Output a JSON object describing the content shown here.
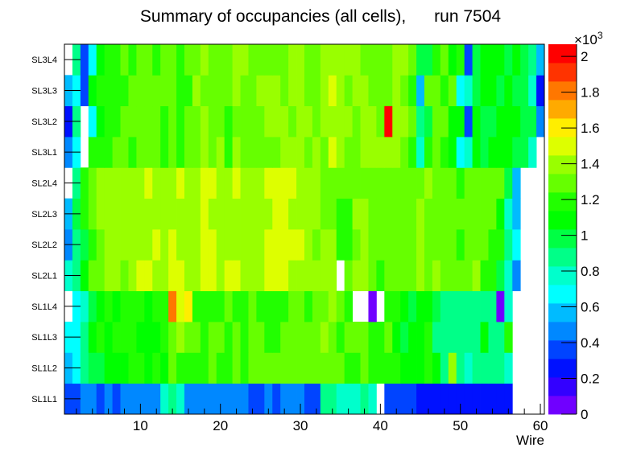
{
  "chart_data": {
    "type": "heatmap",
    "title": "Summary of occupancies (all cells),      run 7504",
    "xlabel": "Wire",
    "ylabel": "",
    "xlim": [
      0.5,
      60.5
    ],
    "x_ticks": [
      10,
      20,
      30,
      40,
      50,
      60
    ],
    "y_categories": [
      "SL1L1",
      "SL1L2",
      "SL1L3",
      "SL1L4",
      "SL2L1",
      "SL2L2",
      "SL2L3",
      "SL2L4",
      "SL3L1",
      "SL3L2",
      "SL3L3",
      "SL3L4"
    ],
    "zlim": [
      0,
      2068
    ],
    "z_multiplier_label": "×10",
    "z_multiplier_exponent": "3",
    "z_ticks": [
      "0",
      "0.2",
      "0.4",
      "0.6",
      "0.8",
      "1",
      "1.2",
      "1.4",
      "1.6",
      "1.8",
      "2"
    ],
    "palette": [
      "#7000ff",
      "#3300ff",
      "#0011ff",
      "#0044ff",
      "#0088ff",
      "#00bbff",
      "#00ffff",
      "#00ffcc",
      "#00ff88",
      "#00ff44",
      "#00ff00",
      "#22ff00",
      "#66ff00",
      "#99ff00",
      "#ddff00",
      "#ffee00",
      "#ffaa00",
      "#ff7700",
      "#ff3300",
      "#ff0000"
    ],
    "z": [
      [
        360,
        360,
        470,
        470,
        360,
        470,
        360,
        470,
        470,
        470,
        470,
        470,
        780,
        880,
        780,
        470,
        470,
        470,
        470,
        470,
        470,
        470,
        470,
        360,
        360,
        470,
        360,
        470,
        470,
        470,
        360,
        360,
        880,
        880,
        780,
        780,
        780,
        880,
        780,
        null,
        360,
        360,
        360,
        360,
        260,
        260,
        260,
        260,
        260,
        260,
        260,
        260,
        260,
        260,
        260,
        260,
        null,
        null,
        null,
        null
      ],
      [
        570,
        670,
        880,
        980,
        980,
        1090,
        1090,
        1090,
        1190,
        1190,
        1090,
        1190,
        1090,
        1290,
        1190,
        1190,
        1190,
        1190,
        1290,
        1190,
        1190,
        1290,
        1190,
        1290,
        1290,
        1290,
        1290,
        1290,
        1290,
        1290,
        1290,
        1290,
        1290,
        1290,
        1290,
        1190,
        1190,
        1290,
        1190,
        1190,
        1190,
        1190,
        1090,
        1090,
        1090,
        1190,
        1090,
        880,
        1400,
        880,
        780,
        880,
        880,
        880,
        880,
        780,
        null,
        null,
        null,
        null
      ],
      [
        670,
        670,
        880,
        1090,
        1190,
        1090,
        1190,
        1190,
        1190,
        1090,
        1090,
        1090,
        1190,
        1290,
        1400,
        1290,
        1290,
        1190,
        1290,
        1290,
        1190,
        1290,
        1190,
        1290,
        1290,
        1190,
        1190,
        1290,
        1290,
        1290,
        1290,
        1290,
        1400,
        1290,
        1190,
        1290,
        1290,
        1290,
        1190,
        1190,
        1290,
        1090,
        980,
        1090,
        1090,
        1190,
        880,
        880,
        880,
        880,
        880,
        880,
        1090,
        880,
        880,
        1190,
        null,
        null,
        null,
        null
      ],
      [
        null,
        670,
        780,
        980,
        1090,
        1190,
        1090,
        1190,
        1190,
        1190,
        1090,
        1190,
        1190,
        1810,
        1500,
        1600,
        1190,
        1190,
        1190,
        1190,
        1290,
        1190,
        1190,
        1290,
        1190,
        1190,
        1190,
        1190,
        1290,
        1290,
        1190,
        1290,
        1290,
        1400,
        1290,
        1190,
        null,
        null,
        50,
        null,
        1190,
        1190,
        1090,
        980,
        1090,
        1090,
        980,
        880,
        880,
        880,
        880,
        880,
        880,
        880,
        50,
        780,
        null,
        null,
        null,
        null
      ],
      [
        780,
        880,
        1090,
        1290,
        1290,
        1400,
        1400,
        1290,
        1400,
        1500,
        1500,
        1400,
        1400,
        1500,
        1500,
        1400,
        1400,
        1500,
        1500,
        1400,
        1500,
        1500,
        1400,
        1400,
        1400,
        1500,
        1500,
        1500,
        1400,
        1400,
        1400,
        1400,
        1400,
        1400,
        null,
        1290,
        1400,
        1400,
        1290,
        1190,
        1290,
        1290,
        1290,
        1290,
        1400,
        1290,
        1400,
        1290,
        1290,
        1290,
        1290,
        1400,
        1190,
        1190,
        980,
        780,
        470,
        null,
        null,
        null
      ],
      [
        470,
        880,
        980,
        1190,
        1290,
        1400,
        1400,
        1400,
        1400,
        1400,
        1400,
        1500,
        1400,
        1500,
        1400,
        1400,
        1400,
        1500,
        1500,
        1400,
        1400,
        1400,
        1400,
        1400,
        1400,
        1500,
        1500,
        1500,
        1500,
        1500,
        1400,
        1290,
        1400,
        1400,
        1190,
        1190,
        1290,
        1400,
        1290,
        1290,
        1290,
        1290,
        1290,
        1290,
        1400,
        1290,
        1290,
        1290,
        1290,
        1190,
        1290,
        1290,
        1290,
        1190,
        1190,
        880,
        670,
        null,
        null,
        null
      ],
      [
        570,
        980,
        1190,
        1290,
        1400,
        1400,
        1400,
        1400,
        1400,
        1400,
        1400,
        1400,
        1400,
        1400,
        1400,
        1400,
        1400,
        1500,
        1400,
        1400,
        1400,
        1400,
        1400,
        1400,
        1400,
        1400,
        1500,
        1500,
        1400,
        1400,
        1400,
        1400,
        1290,
        1290,
        1190,
        1190,
        1400,
        1400,
        1290,
        1290,
        1290,
        1290,
        1290,
        1290,
        1400,
        1290,
        1290,
        1290,
        1290,
        1290,
        1290,
        1290,
        1290,
        1290,
        1090,
        780,
        570,
        null,
        null,
        null
      ],
      [
        null,
        880,
        1190,
        1290,
        1400,
        1400,
        1400,
        1400,
        1400,
        1400,
        1500,
        1400,
        1400,
        1400,
        1500,
        1400,
        1400,
        1500,
        1500,
        1400,
        1400,
        1500,
        1400,
        1400,
        1400,
        1500,
        1500,
        1500,
        1500,
        1400,
        1400,
        1400,
        1290,
        1290,
        1290,
        1290,
        1290,
        1290,
        1290,
        1290,
        1290,
        1290,
        1290,
        1290,
        1290,
        1400,
        1290,
        1290,
        1290,
        1190,
        1290,
        1290,
        1290,
        1290,
        1290,
        980,
        570,
        null,
        null,
        null
      ],
      [
        470,
        670,
        null,
        1190,
        1190,
        1190,
        1290,
        1290,
        1190,
        1290,
        1290,
        1290,
        1190,
        1290,
        1190,
        1290,
        1290,
        1400,
        1290,
        1400,
        1190,
        1400,
        1290,
        1290,
        1290,
        1290,
        1290,
        1400,
        1400,
        1400,
        1290,
        1400,
        1290,
        1500,
        1400,
        1290,
        1290,
        1400,
        1400,
        1400,
        1400,
        1400,
        1290,
        1190,
        780,
        1190,
        1290,
        1190,
        1090,
        670,
        780,
        1090,
        980,
        1090,
        1090,
        1090,
        980,
        980,
        780,
        null
      ],
      [
        260,
        880,
        null,
        670,
        1090,
        1190,
        1190,
        1290,
        1290,
        1290,
        1290,
        1290,
        1190,
        1290,
        1190,
        1290,
        1290,
        1400,
        1290,
        1290,
        1190,
        1290,
        1290,
        1290,
        1290,
        1400,
        1400,
        1400,
        1290,
        1400,
        1400,
        1290,
        1400,
        1400,
        1400,
        1400,
        1290,
        1400,
        1400,
        1290,
        2010,
        1400,
        1400,
        1290,
        880,
        980,
        1290,
        1290,
        1090,
        1090,
        360,
        1090,
        980,
        980,
        1090,
        1090,
        1090,
        980,
        980,
        470
      ],
      [
        570,
        670,
        360,
        1090,
        1190,
        1190,
        1190,
        1190,
        1290,
        1290,
        1290,
        1290,
        1290,
        1290,
        1190,
        1190,
        1400,
        1290,
        1290,
        1290,
        1290,
        1400,
        1290,
        1290,
        1400,
        1400,
        1400,
        1290,
        1400,
        1400,
        1290,
        1290,
        1400,
        1500,
        1400,
        1290,
        1400,
        1400,
        1290,
        1290,
        1290,
        1400,
        1290,
        1190,
        570,
        1290,
        1290,
        1190,
        1290,
        670,
        780,
        980,
        1090,
        1090,
        980,
        1090,
        980,
        980,
        780,
        260
      ],
      [
        null,
        880,
        360,
        670,
        1090,
        1190,
        1190,
        1290,
        1190,
        1290,
        1290,
        1190,
        1290,
        1290,
        1190,
        1290,
        1290,
        1400,
        1290,
        1290,
        1290,
        1400,
        1400,
        1290,
        1290,
        1290,
        1290,
        1290,
        1400,
        1400,
        1290,
        1290,
        1400,
        1400,
        1400,
        1400,
        1400,
        1290,
        1290,
        1290,
        1290,
        1400,
        1400,
        1290,
        980,
        980,
        1190,
        1290,
        1090,
        1190,
        360,
        980,
        1090,
        1090,
        1090,
        980,
        1090,
        980,
        880,
        570
      ]
    ]
  }
}
